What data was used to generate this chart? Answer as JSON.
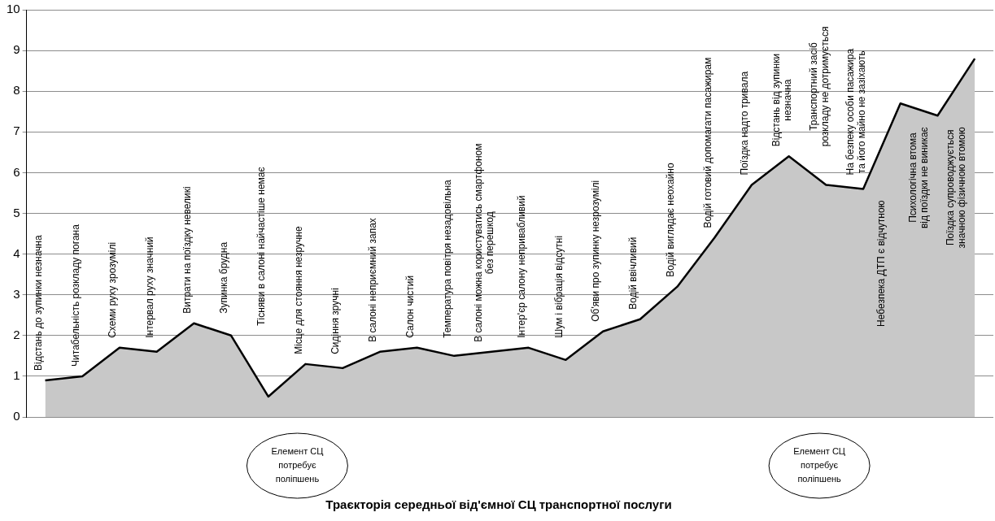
{
  "chart_data": {
    "type": "area",
    "title": "Траєкторія середньої від'ємної СЦ транспортної послуги",
    "categories": [
      "Відстань до зупинки незначна",
      "Читабельність розкладу погана",
      "Схеми руху зрозумілі",
      "Інтервал руху значний",
      "Витрати на поїздку невеликі",
      "Зупинка брудна",
      "Тісняви в салоні найчастіше немає",
      "Місце для стояння незручне",
      "Сидіння зручні",
      "В салоні неприємний запах",
      "Салон чистий",
      "Температура повітря незадовільна",
      "В салоні можна користуватись смартфоном\nбез перешкод",
      "Інтер'єр салону непривабливий",
      "Шум і вібрація відсутні",
      "Об'яви про зупинку незрозумілі",
      "Водій ввічливий",
      "Водій виглядає неохайно",
      "Водій готовий допомагати пасажирам",
      "Поїздка надто тривала",
      "Відстань від зупинки\nнезначна",
      "Транспортний засіб\nрозкладу не дотримується",
      "На безпеку особи пасажира\nта його майно не зазіхають",
      "Небезпека ДТП є відчутною",
      "Психологічна втома\nвід поїздки не виникає",
      "Поїздка супроводжується\nзначною фізичною втомою"
    ],
    "series": [
      {
        "color": "#c8c8c8",
        "values": [
          0.9,
          1.0,
          1.7,
          1.6,
          2.3,
          2.0,
          0.5,
          1.3,
          1.2,
          1.6,
          1.7,
          1.5,
          1.6,
          1.7,
          1.4,
          2.1,
          2.4,
          3.2,
          4.4,
          5.7,
          6.4,
          5.7,
          5.6,
          7.7,
          7.4,
          8.8
        ]
      }
    ],
    "ylim": [
      0,
      10
    ],
    "yticks": [
      0,
      1,
      2,
      3,
      4,
      5,
      6,
      7,
      8,
      9,
      10
    ],
    "grid": "y",
    "legend": false,
    "tick_labels": "y",
    "annotations": [
      "Елемент СЦ\nпотребує\nполіпшень",
      "Елемент СЦ\nпотребує\nполіпшень"
    ]
  }
}
